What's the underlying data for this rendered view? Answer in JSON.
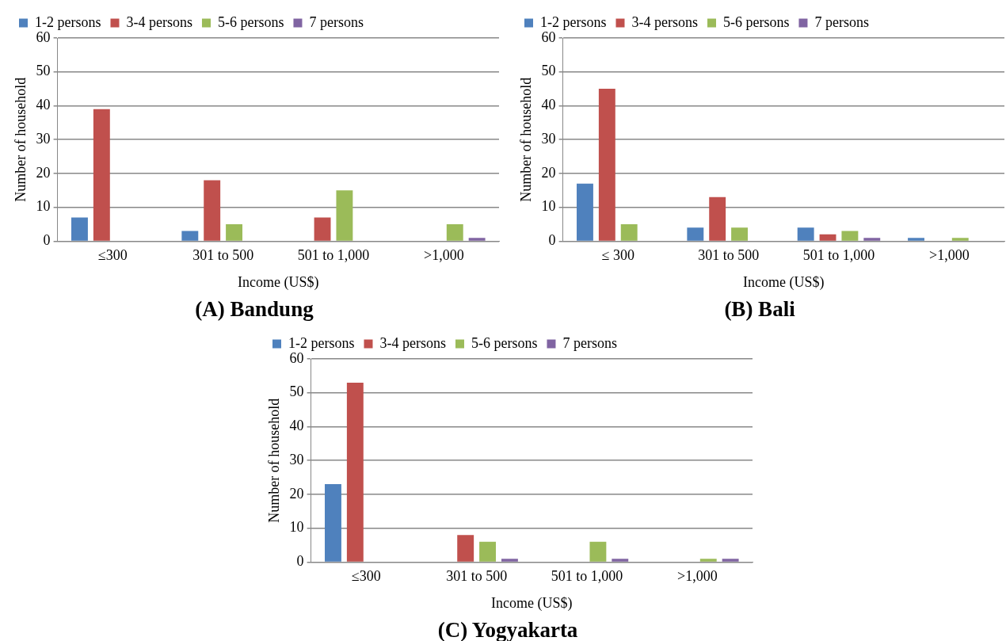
{
  "chart_data": [
    {
      "type": "bar",
      "title": "(A) Bandung",
      "xlabel": "Income (US$)",
      "ylabel": "Number of household",
      "categories": [
        "≤300",
        "301 to 500",
        "501 to 1,000",
        ">1,000"
      ],
      "series": [
        {
          "name": "1-2 persons",
          "color": "#4f81bd",
          "values": [
            7,
            3,
            0,
            0
          ]
        },
        {
          "name": "3-4 persons",
          "color": "#c0504d",
          "values": [
            39,
            18,
            7,
            0
          ]
        },
        {
          "name": "5-6 persons",
          "color": "#9bbb59",
          "values": [
            0,
            5,
            15,
            5
          ]
        },
        {
          "name": "7 persons",
          "color": "#8064a2",
          "values": [
            0,
            0,
            0,
            1
          ]
        }
      ],
      "ylim": [
        0,
        60
      ],
      "yticks": [
        0,
        10,
        20,
        30,
        40,
        50,
        60
      ],
      "grid": "y",
      "legend": "top left"
    },
    {
      "type": "bar",
      "title": "(B) Bali",
      "xlabel": "Income (US$)",
      "ylabel": "Number of household",
      "categories": [
        "≤ 300",
        "301 to 500",
        "501 to 1,000",
        ">1,000"
      ],
      "series": [
        {
          "name": "1-2 persons",
          "color": "#4f81bd",
          "values": [
            17,
            4,
            4,
            1
          ]
        },
        {
          "name": "3-4 persons",
          "color": "#c0504d",
          "values": [
            45,
            13,
            2,
            0
          ]
        },
        {
          "name": "5-6 persons",
          "color": "#9bbb59",
          "values": [
            5,
            4,
            3,
            1
          ]
        },
        {
          "name": "7 persons",
          "color": "#8064a2",
          "values": [
            0,
            0,
            1,
            0
          ]
        }
      ],
      "ylim": [
        0,
        60
      ],
      "yticks": [
        0,
        10,
        20,
        30,
        40,
        50,
        60
      ],
      "grid": "y",
      "legend": "top left"
    },
    {
      "type": "bar",
      "title": "(C) Yogyakarta",
      "xlabel": "Income (US$)",
      "ylabel": "Number of household",
      "categories": [
        "≤300",
        "301 to 500",
        "501 to 1,000",
        ">1,000"
      ],
      "series": [
        {
          "name": "1-2 persons",
          "color": "#4f81bd",
          "values": [
            23,
            0,
            0,
            0
          ]
        },
        {
          "name": "3-4 persons",
          "color": "#c0504d",
          "values": [
            53,
            8,
            0,
            0
          ]
        },
        {
          "name": "5-6 persons",
          "color": "#9bbb59",
          "values": [
            0,
            6,
            6,
            1
          ]
        },
        {
          "name": "7 persons",
          "color": "#8064a2",
          "values": [
            0,
            1,
            1,
            1
          ]
        }
      ],
      "ylim": [
        0,
        60
      ],
      "yticks": [
        0,
        10,
        20,
        30,
        40,
        50,
        60
      ],
      "grid": "y",
      "legend": "top left"
    }
  ]
}
